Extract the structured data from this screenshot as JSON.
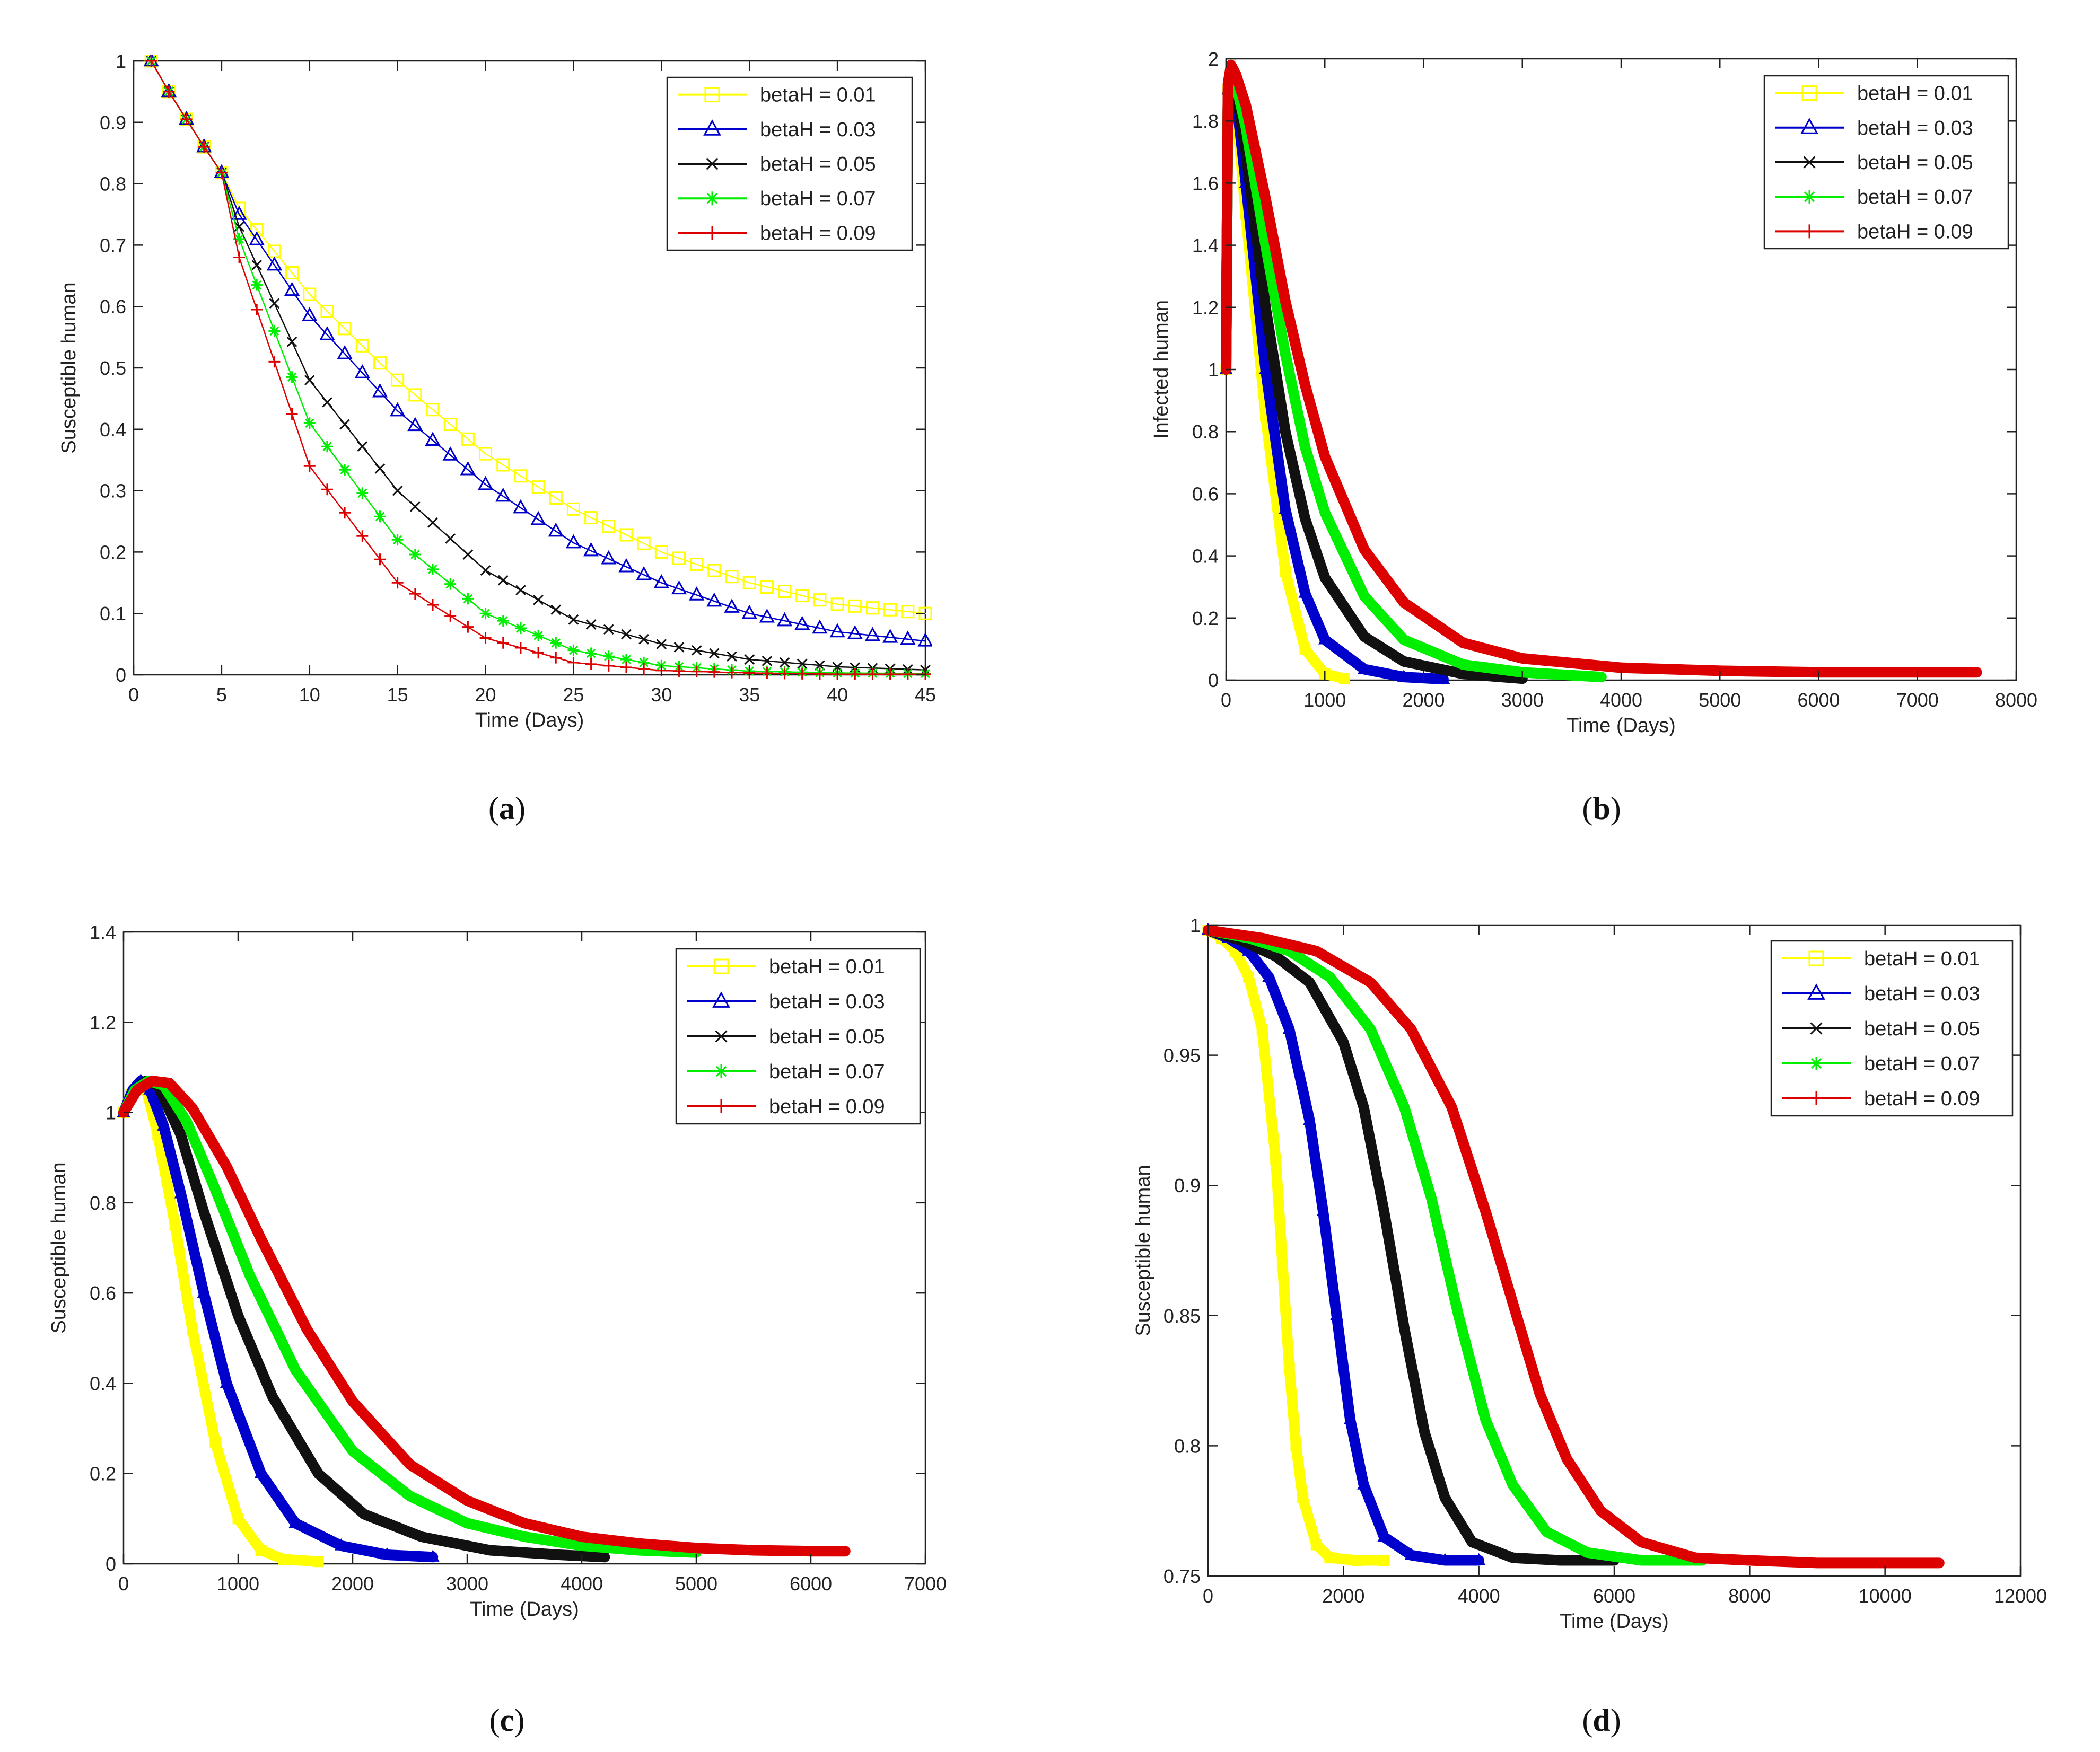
{
  "chart_data": [
    {
      "panel": "a",
      "type": "line",
      "caption": {
        "open": "(",
        "letter": "a",
        "close": ")"
      },
      "xlabel": "Time (Days)",
      "ylabel": "Susceptible human",
      "xlim": [
        0,
        45
      ],
      "ylim": [
        0,
        1
      ],
      "xticks": [
        0,
        5,
        10,
        15,
        20,
        25,
        30,
        35,
        40,
        45
      ],
      "yticks": [
        0,
        0.1,
        0.2,
        0.3,
        0.4,
        0.5,
        0.6,
        0.7,
        0.8,
        0.9,
        1
      ],
      "xtick_labels": [
        "0",
        "5",
        "10",
        "15",
        "20",
        "25",
        "30",
        "35",
        "40",
        "45"
      ],
      "ytick_labels": [
        "0",
        "0.1",
        "0.2",
        "0.3",
        "0.4",
        "0.5",
        "0.6",
        "0.7",
        "0.8",
        "0.9",
        "1"
      ],
      "legend_position": "top-right",
      "series": [
        {
          "name": "betaH = 0.01",
          "color": "#ffff00",
          "marker": "square",
          "x": [
            1,
            2,
            3,
            4,
            5,
            6,
            10,
            15,
            20,
            25,
            30,
            35,
            40,
            45
          ],
          "values": [
            1.0,
            0.95,
            0.905,
            0.86,
            0.818,
            0.76,
            0.62,
            0.48,
            0.36,
            0.27,
            0.2,
            0.15,
            0.115,
            0.1
          ]
        },
        {
          "name": "betaH = 0.03",
          "color": "#0000cc",
          "marker": "triangle",
          "x": [
            1,
            2,
            3,
            4,
            5,
            6,
            10,
            15,
            20,
            25,
            30,
            35,
            40,
            45
          ],
          "values": [
            1.0,
            0.95,
            0.905,
            0.86,
            0.818,
            0.75,
            0.585,
            0.43,
            0.31,
            0.215,
            0.15,
            0.1,
            0.07,
            0.055
          ]
        },
        {
          "name": "betaH = 0.05",
          "color": "#111111",
          "marker": "x",
          "x": [
            1,
            2,
            3,
            4,
            5,
            6,
            10,
            15,
            20,
            25,
            30,
            35,
            40,
            45
          ],
          "values": [
            1.0,
            0.95,
            0.905,
            0.86,
            0.818,
            0.73,
            0.48,
            0.3,
            0.17,
            0.09,
            0.05,
            0.025,
            0.013,
            0.008
          ]
        },
        {
          "name": "betaH = 0.07",
          "color": "#00ee00",
          "marker": "asterisk",
          "x": [
            1,
            2,
            3,
            4,
            5,
            6,
            10,
            15,
            20,
            25,
            30,
            35,
            40,
            45
          ],
          "values": [
            1.0,
            0.95,
            0.905,
            0.86,
            0.818,
            0.71,
            0.41,
            0.22,
            0.1,
            0.04,
            0.015,
            0.006,
            0.003,
            0.002
          ]
        },
        {
          "name": "betaH = 0.09",
          "color": "#dd0000",
          "marker": "plus",
          "x": [
            1,
            2,
            3,
            4,
            5,
            6,
            10,
            15,
            20,
            25,
            30,
            35,
            40,
            45
          ],
          "values": [
            1.0,
            0.95,
            0.905,
            0.86,
            0.818,
            0.68,
            0.34,
            0.15,
            0.06,
            0.02,
            0.007,
            0.003,
            0.001,
            0.001
          ]
        }
      ]
    },
    {
      "panel": "b",
      "type": "line",
      "caption": {
        "open": "(",
        "letter": "b",
        "close": ")"
      },
      "xlabel": "Time (Days)",
      "ylabel": "Infected human",
      "xlim": [
        0,
        8000
      ],
      "ylim": [
        0,
        2
      ],
      "xticks": [
        0,
        1000,
        2000,
        3000,
        4000,
        5000,
        6000,
        7000,
        8000
      ],
      "yticks": [
        0,
        0.2,
        0.4,
        0.6,
        0.8,
        1,
        1.2,
        1.4,
        1.6,
        1.8,
        2
      ],
      "xtick_labels": [
        "0",
        "1000",
        "2000",
        "3000",
        "4000",
        "5000",
        "6000",
        "7000",
        "8000"
      ],
      "ytick_labels": [
        "0",
        "0.2",
        "0.4",
        "0.6",
        "0.8",
        "1",
        "1.2",
        "1.4",
        "1.6",
        "1.8",
        "2"
      ],
      "legend_position": "top-right",
      "series": [
        {
          "name": "betaH = 0.01",
          "color": "#ffff00",
          "marker": "square",
          "x": [
            0,
            20,
            50,
            100,
            200,
            400,
            600,
            800,
            1000,
            1200
          ],
          "values": [
            1.0,
            1.9,
            1.95,
            1.85,
            1.5,
            0.85,
            0.35,
            0.1,
            0.02,
            0.005
          ]
        },
        {
          "name": "betaH = 0.03",
          "color": "#0000cc",
          "marker": "triangle",
          "x": [
            0,
            20,
            50,
            100,
            200,
            400,
            600,
            800,
            1000,
            1400,
            1800,
            2200
          ],
          "values": [
            1.0,
            1.9,
            1.96,
            1.88,
            1.6,
            1.0,
            0.55,
            0.28,
            0.13,
            0.035,
            0.01,
            0.003
          ]
        },
        {
          "name": "betaH = 0.05",
          "color": "#111111",
          "marker": "x",
          "x": [
            0,
            20,
            50,
            100,
            200,
            400,
            600,
            800,
            1000,
            1400,
            1800,
            2400,
            3000
          ],
          "values": [
            1.0,
            1.9,
            1.96,
            1.9,
            1.7,
            1.2,
            0.8,
            0.52,
            0.33,
            0.14,
            0.06,
            0.02,
            0.005
          ]
        },
        {
          "name": "betaH = 0.07",
          "color": "#00ee00",
          "marker": "asterisk",
          "x": [
            0,
            20,
            50,
            100,
            200,
            400,
            600,
            800,
            1000,
            1400,
            1800,
            2400,
            3000,
            3800
          ],
          "values": [
            1.0,
            1.9,
            1.97,
            1.92,
            1.78,
            1.4,
            1.05,
            0.75,
            0.54,
            0.27,
            0.13,
            0.05,
            0.025,
            0.01
          ]
        },
        {
          "name": "betaH = 0.09",
          "color": "#dd0000",
          "marker": "plus",
          "x": [
            0,
            20,
            50,
            100,
            200,
            400,
            600,
            800,
            1000,
            1400,
            1800,
            2400,
            3000,
            4000,
            5000,
            6000,
            7000,
            7600
          ],
          "values": [
            1.0,
            1.92,
            1.98,
            1.95,
            1.85,
            1.55,
            1.22,
            0.95,
            0.72,
            0.42,
            0.25,
            0.12,
            0.07,
            0.04,
            0.03,
            0.025,
            0.025,
            0.025
          ]
        }
      ]
    },
    {
      "panel": "c",
      "type": "line",
      "caption": {
        "open": "(",
        "letter": "c",
        "close": ")"
      },
      "xlabel": "Time (Days)",
      "ylabel": "Susceptible human",
      "xlim": [
        0,
        7000
      ],
      "ylim": [
        0,
        1.4
      ],
      "xticks": [
        0,
        1000,
        2000,
        3000,
        4000,
        5000,
        6000,
        7000
      ],
      "yticks": [
        0,
        0.2,
        0.4,
        0.6,
        0.8,
        1,
        1.2,
        1.4
      ],
      "xtick_labels": [
        "0",
        "1000",
        "2000",
        "3000",
        "4000",
        "5000",
        "6000",
        "7000"
      ],
      "ytick_labels": [
        "0",
        "0.2",
        "0.4",
        "0.6",
        "0.8",
        "1",
        "1.2",
        "1.4"
      ],
      "legend_position": "top-right",
      "series": [
        {
          "name": "betaH = 0.01",
          "color": "#ffff00",
          "marker": "square",
          "x": [
            0,
            60,
            130,
            200,
            300,
            450,
            600,
            800,
            1000,
            1200,
            1400,
            1700
          ],
          "values": [
            1.0,
            1.04,
            1.06,
            1.05,
            0.95,
            0.75,
            0.52,
            0.27,
            0.1,
            0.03,
            0.01,
            0.005
          ]
        },
        {
          "name": "betaH = 0.03",
          "color": "#0000cc",
          "marker": "triangle",
          "x": [
            0,
            80,
            150,
            230,
            350,
            500,
            700,
            900,
            1200,
            1500,
            1900,
            2300,
            2700
          ],
          "values": [
            1.0,
            1.05,
            1.07,
            1.05,
            0.97,
            0.82,
            0.6,
            0.4,
            0.2,
            0.09,
            0.04,
            0.02,
            0.015
          ]
        },
        {
          "name": "betaH = 0.05",
          "color": "#111111",
          "marker": "x",
          "x": [
            0,
            100,
            200,
            300,
            500,
            700,
            1000,
            1300,
            1700,
            2100,
            2600,
            3200,
            3800,
            4200
          ],
          "values": [
            1.0,
            1.05,
            1.07,
            1.06,
            0.95,
            0.78,
            0.55,
            0.37,
            0.2,
            0.11,
            0.06,
            0.03,
            0.02,
            0.015
          ]
        },
        {
          "name": "betaH = 0.07",
          "color": "#00ee00",
          "marker": "asterisk",
          "x": [
            0,
            100,
            220,
            350,
            550,
            800,
            1100,
            1500,
            2000,
            2500,
            3000,
            3500,
            4000,
            4500,
            5000
          ],
          "values": [
            1.0,
            1.05,
            1.07,
            1.06,
            0.98,
            0.83,
            0.64,
            0.43,
            0.25,
            0.15,
            0.09,
            0.06,
            0.04,
            0.03,
            0.025
          ]
        },
        {
          "name": "betaH = 0.09",
          "color": "#dd0000",
          "marker": "plus",
          "x": [
            0,
            120,
            250,
            400,
            600,
            900,
            1200,
            1600,
            2000,
            2500,
            3000,
            3500,
            4000,
            4500,
            5000,
            5500,
            6000,
            6300
          ],
          "values": [
            1.0,
            1.05,
            1.07,
            1.065,
            1.01,
            0.88,
            0.72,
            0.52,
            0.36,
            0.22,
            0.14,
            0.09,
            0.06,
            0.045,
            0.035,
            0.03,
            0.028,
            0.028
          ]
        }
      ]
    },
    {
      "panel": "d",
      "type": "line",
      "caption": {
        "open": "(",
        "letter": "d",
        "close": ")"
      },
      "xlabel": "Time (Days)",
      "ylabel": "Susceptible human",
      "xlim": [
        0,
        12000
      ],
      "ylim": [
        0.75,
        1
      ],
      "xticks": [
        0,
        2000,
        4000,
        6000,
        8000,
        10000,
        12000
      ],
      "yticks": [
        0.75,
        0.8,
        0.85,
        0.9,
        0.95,
        1
      ],
      "xtick_labels": [
        "0",
        "2000",
        "4000",
        "6000",
        "8000",
        "10000",
        "12000"
      ],
      "ytick_labels": [
        "0.75",
        "0.8",
        "0.85",
        "0.9",
        "0.95",
        "1"
      ],
      "legend_position": "top-right",
      "series": [
        {
          "name": "betaH = 0.01",
          "color": "#ffff00",
          "marker": "square",
          "x": [
            0,
            200,
            400,
            600,
            800,
            1000,
            1100,
            1200,
            1300,
            1400,
            1600,
            1800,
            2200,
            2600
          ],
          "values": [
            0.998,
            0.995,
            0.99,
            0.98,
            0.96,
            0.91,
            0.87,
            0.83,
            0.8,
            0.78,
            0.762,
            0.757,
            0.756,
            0.756
          ]
        },
        {
          "name": "betaH = 0.03",
          "color": "#0000cc",
          "marker": "triangle",
          "x": [
            0,
            300,
            600,
            900,
            1200,
            1500,
            1700,
            1900,
            2100,
            2300,
            2600,
            3000,
            3500,
            4000
          ],
          "values": [
            0.998,
            0.995,
            0.99,
            0.98,
            0.96,
            0.925,
            0.89,
            0.85,
            0.81,
            0.785,
            0.765,
            0.758,
            0.756,
            0.756
          ]
        },
        {
          "name": "betaH = 0.05",
          "color": "#111111",
          "marker": "x",
          "x": [
            0,
            500,
            1000,
            1500,
            2000,
            2300,
            2600,
            2900,
            3200,
            3500,
            3900,
            4500,
            5200,
            6000
          ],
          "values": [
            0.998,
            0.994,
            0.988,
            0.978,
            0.955,
            0.93,
            0.89,
            0.845,
            0.805,
            0.78,
            0.763,
            0.757,
            0.756,
            0.756
          ]
        },
        {
          "name": "betaH = 0.07",
          "color": "#00ee00",
          "marker": "asterisk",
          "x": [
            0,
            600,
            1200,
            1800,
            2400,
            2900,
            3300,
            3700,
            4100,
            4500,
            5000,
            5600,
            6400,
            7300
          ],
          "values": [
            0.998,
            0.995,
            0.99,
            0.98,
            0.96,
            0.93,
            0.895,
            0.85,
            0.81,
            0.785,
            0.767,
            0.759,
            0.756,
            0.756
          ]
        },
        {
          "name": "betaH = 0.09",
          "color": "#dd0000",
          "marker": "plus",
          "x": [
            0,
            800,
            1600,
            2400,
            3000,
            3600,
            4100,
            4500,
            4900,
            5300,
            5800,
            6400,
            7200,
            8000,
            9000,
            10000,
            10800
          ],
          "values": [
            0.998,
            0.995,
            0.99,
            0.978,
            0.96,
            0.93,
            0.89,
            0.855,
            0.82,
            0.795,
            0.775,
            0.763,
            0.757,
            0.756,
            0.755,
            0.755,
            0.755
          ]
        }
      ]
    }
  ]
}
